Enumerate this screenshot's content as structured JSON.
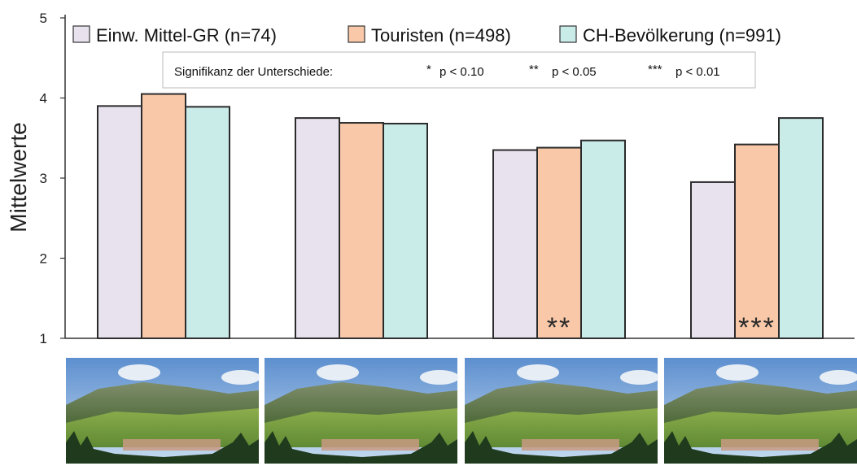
{
  "chart_data": {
    "type": "bar",
    "ylabel": "Mittelwerte",
    "ylim": [
      1,
      5
    ],
    "yticks": [
      1,
      2,
      3,
      4,
      5
    ],
    "categories": [
      "",
      "",
      "",
      ""
    ],
    "series": [
      {
        "name": "Einw. Mittel-GR (n=74)",
        "color": "#e8e2ee",
        "values": [
          3.9,
          3.75,
          3.35,
          2.95
        ]
      },
      {
        "name": "Touristen (n=498)",
        "color": "#f9c8a8",
        "values": [
          4.05,
          3.69,
          3.38,
          3.42
        ]
      },
      {
        "name": "CH-Bevölkerung (n=991)",
        "color": "#c9ece9",
        "values": [
          3.89,
          3.68,
          3.47,
          3.75
        ]
      }
    ],
    "significance_legend": {
      "title": "Signifikanz der Unterschiede:",
      "items": [
        {
          "stars": "*",
          "label": "p < 0.10"
        },
        {
          "stars": "**",
          "label": "p < 0.05"
        },
        {
          "stars": "***",
          "label": "p < 0.01"
        }
      ]
    },
    "annotations": [
      "",
      "",
      "**",
      "***"
    ],
    "legend_position": "top",
    "grid": false
  },
  "photos": [
    {
      "name": "landscape-photo-1"
    },
    {
      "name": "landscape-photo-2"
    },
    {
      "name": "landscape-photo-3"
    },
    {
      "name": "landscape-photo-4"
    }
  ]
}
